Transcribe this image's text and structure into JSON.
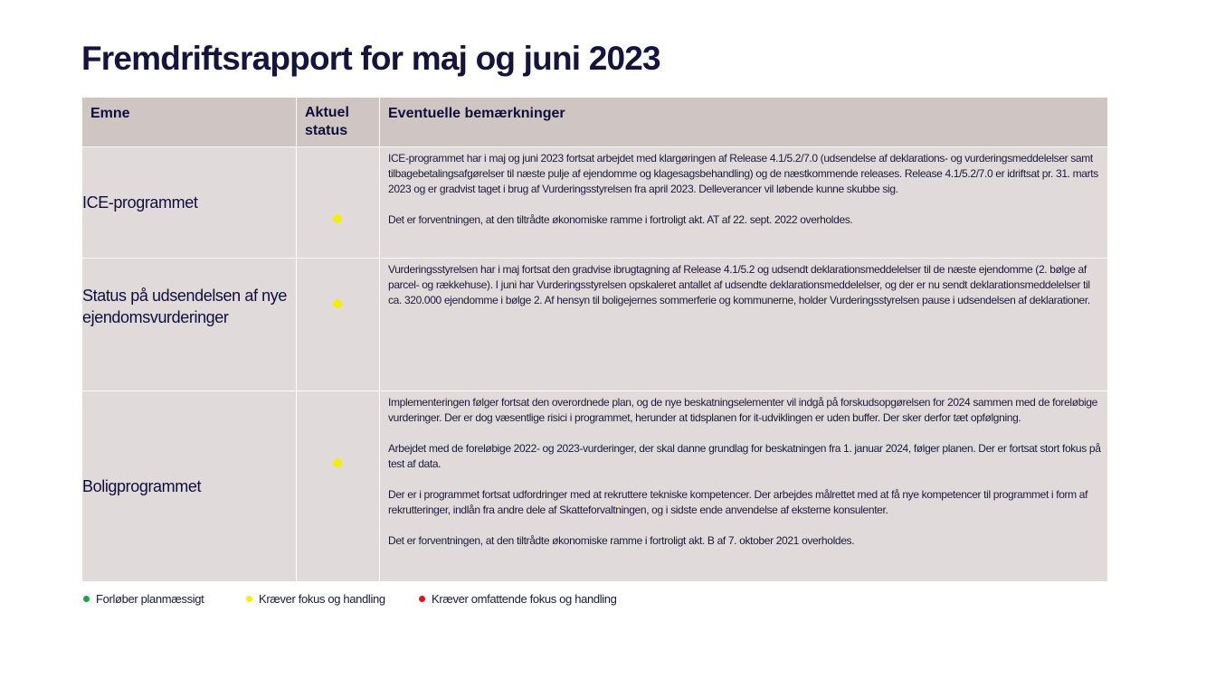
{
  "title": "Fremdriftsrapport for maj og juni 2023",
  "table": {
    "headers": {
      "emne": "Emne",
      "status_line1": "Aktuel",
      "status_line2": "status",
      "remarks": "Eventuelle bemærkninger"
    },
    "rows": [
      {
        "subject": "ICE-programmet",
        "status": "yellow",
        "remarks": [
          "ICE-programmet har i maj og juni 2023 fortsat arbejdet med klargøringen af Release 4.1/5.2/7.0 (udsendelse af deklarations- og vurderingsmeddelelser samt tilbagebetalingsafgørelser til næste pulje af ejendomme og klagesagsbehandling) og de næstkommende releases. Release 4.1/5.2/7.0 er idriftsat pr. 31. marts 2023 og er gradvist taget i brug af Vurderingsstyrelsen fra april 2023. Delleverancer vil løbende kunne skubbe sig.",
          "Det er forventningen, at den tiltrådte økonomiske ramme i fortroligt akt. AT af 22. sept. 2022 overholdes."
        ]
      },
      {
        "subject": "Status på udsendelsen af nye ejendomsvurderinger",
        "status": "yellow",
        "remarks": [
          "Vurderingsstyrelsen har i maj fortsat den gradvise ibrugtagning af Release 4.1/5.2 og udsendt deklarationsmeddelelser til de næste ejendomme (2. bølge af parcel- og rækkehuse). I juni har Vurderingsstyrelsen opskaleret antallet af udsendte deklarationsmeddelelser, og der er nu sendt deklarationsmeddelelser til ca. 320.000 ejendomme i bølge 2. Af hensyn til boligejernes sommerferie og kommunerne, holder Vurderingsstyrelsen pause i udsendelsen af deklarationer."
        ]
      },
      {
        "subject": "Boligprogrammet",
        "status": "yellow",
        "remarks": [
          "Implementeringen følger fortsat den overordnede plan, og de nye beskatningselementer vil indgå på forskudsopgørelsen for 2024 sammen med de foreløbige vurderinger. Der er dog væsentlige risici i programmet, herunder at tidsplanen for it-udviklingen er uden buffer. Der sker derfor tæt opfølgning.",
          "Arbejdet med de foreløbige 2022- og 2023-vurderinger, der skal danne grundlag for beskatningen fra 1. januar 2024, følger planen. Der er fortsat stort fokus på test af data.",
          "Der er i programmet fortsat udfordringer med at rekruttere tekniske kompetencer. Der arbejdes målrettet med at få nye kompetencer til programmet i form af rekrutteringer, indlån fra andre dele af Skatteforvaltningen, og i sidste ende anvendelse af eksterne  konsulenter.",
          "Det er forventningen, at den tiltrådte økonomiske ramme i fortroligt akt. B af 7. oktober 2021 overholdes."
        ]
      }
    ]
  },
  "legend": [
    {
      "label": "Forløber planmæssigt",
      "color": "#1aa54b"
    },
    {
      "label": "Kræver fokus og handling",
      "color": "#f4ee00"
    },
    {
      "label": "Kræver omfattende fokus og handling",
      "color": "#e3101c"
    }
  ],
  "colors": {
    "title": "#14143c",
    "header_bg": "#cfc5c3",
    "row_bg": "#e1dadb",
    "status_yellow": "#f4ee00"
  }
}
